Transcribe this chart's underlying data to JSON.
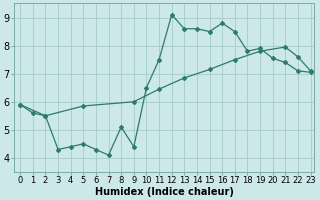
{
  "xlabel": "Humidex (Indice chaleur)",
  "background_color": "#cce8e8",
  "line_color": "#2d7a6e",
  "grid_color": "#aacece",
  "xlim": [
    -0.5,
    23.3
  ],
  "ylim": [
    3.5,
    9.5
  ],
  "xticks": [
    0,
    1,
    2,
    3,
    4,
    5,
    6,
    7,
    8,
    9,
    10,
    11,
    12,
    13,
    14,
    15,
    16,
    17,
    18,
    19,
    20,
    21,
    22,
    23
  ],
  "yticks": [
    4,
    5,
    6,
    7,
    8,
    9
  ],
  "series1_x": [
    0,
    1,
    2,
    3,
    4,
    5,
    6,
    7,
    8,
    9,
    10,
    11,
    12,
    13,
    14,
    15,
    16,
    17,
    18,
    19,
    20,
    21,
    22,
    23
  ],
  "series1_y": [
    5.9,
    5.6,
    5.5,
    4.3,
    4.4,
    4.5,
    4.3,
    4.1,
    5.1,
    4.4,
    6.5,
    7.5,
    9.1,
    8.6,
    8.6,
    8.5,
    8.8,
    8.5,
    7.8,
    7.9,
    7.55,
    7.4,
    7.1,
    7.05
  ],
  "series2_x": [
    0,
    2,
    5,
    9,
    11,
    13,
    15,
    17,
    19,
    21,
    22,
    23
  ],
  "series2_y": [
    5.9,
    5.5,
    5.85,
    6.0,
    6.45,
    6.85,
    7.15,
    7.5,
    7.8,
    7.95,
    7.6,
    7.1
  ],
  "tick_fontsize": 6,
  "xlabel_fontsize": 7
}
